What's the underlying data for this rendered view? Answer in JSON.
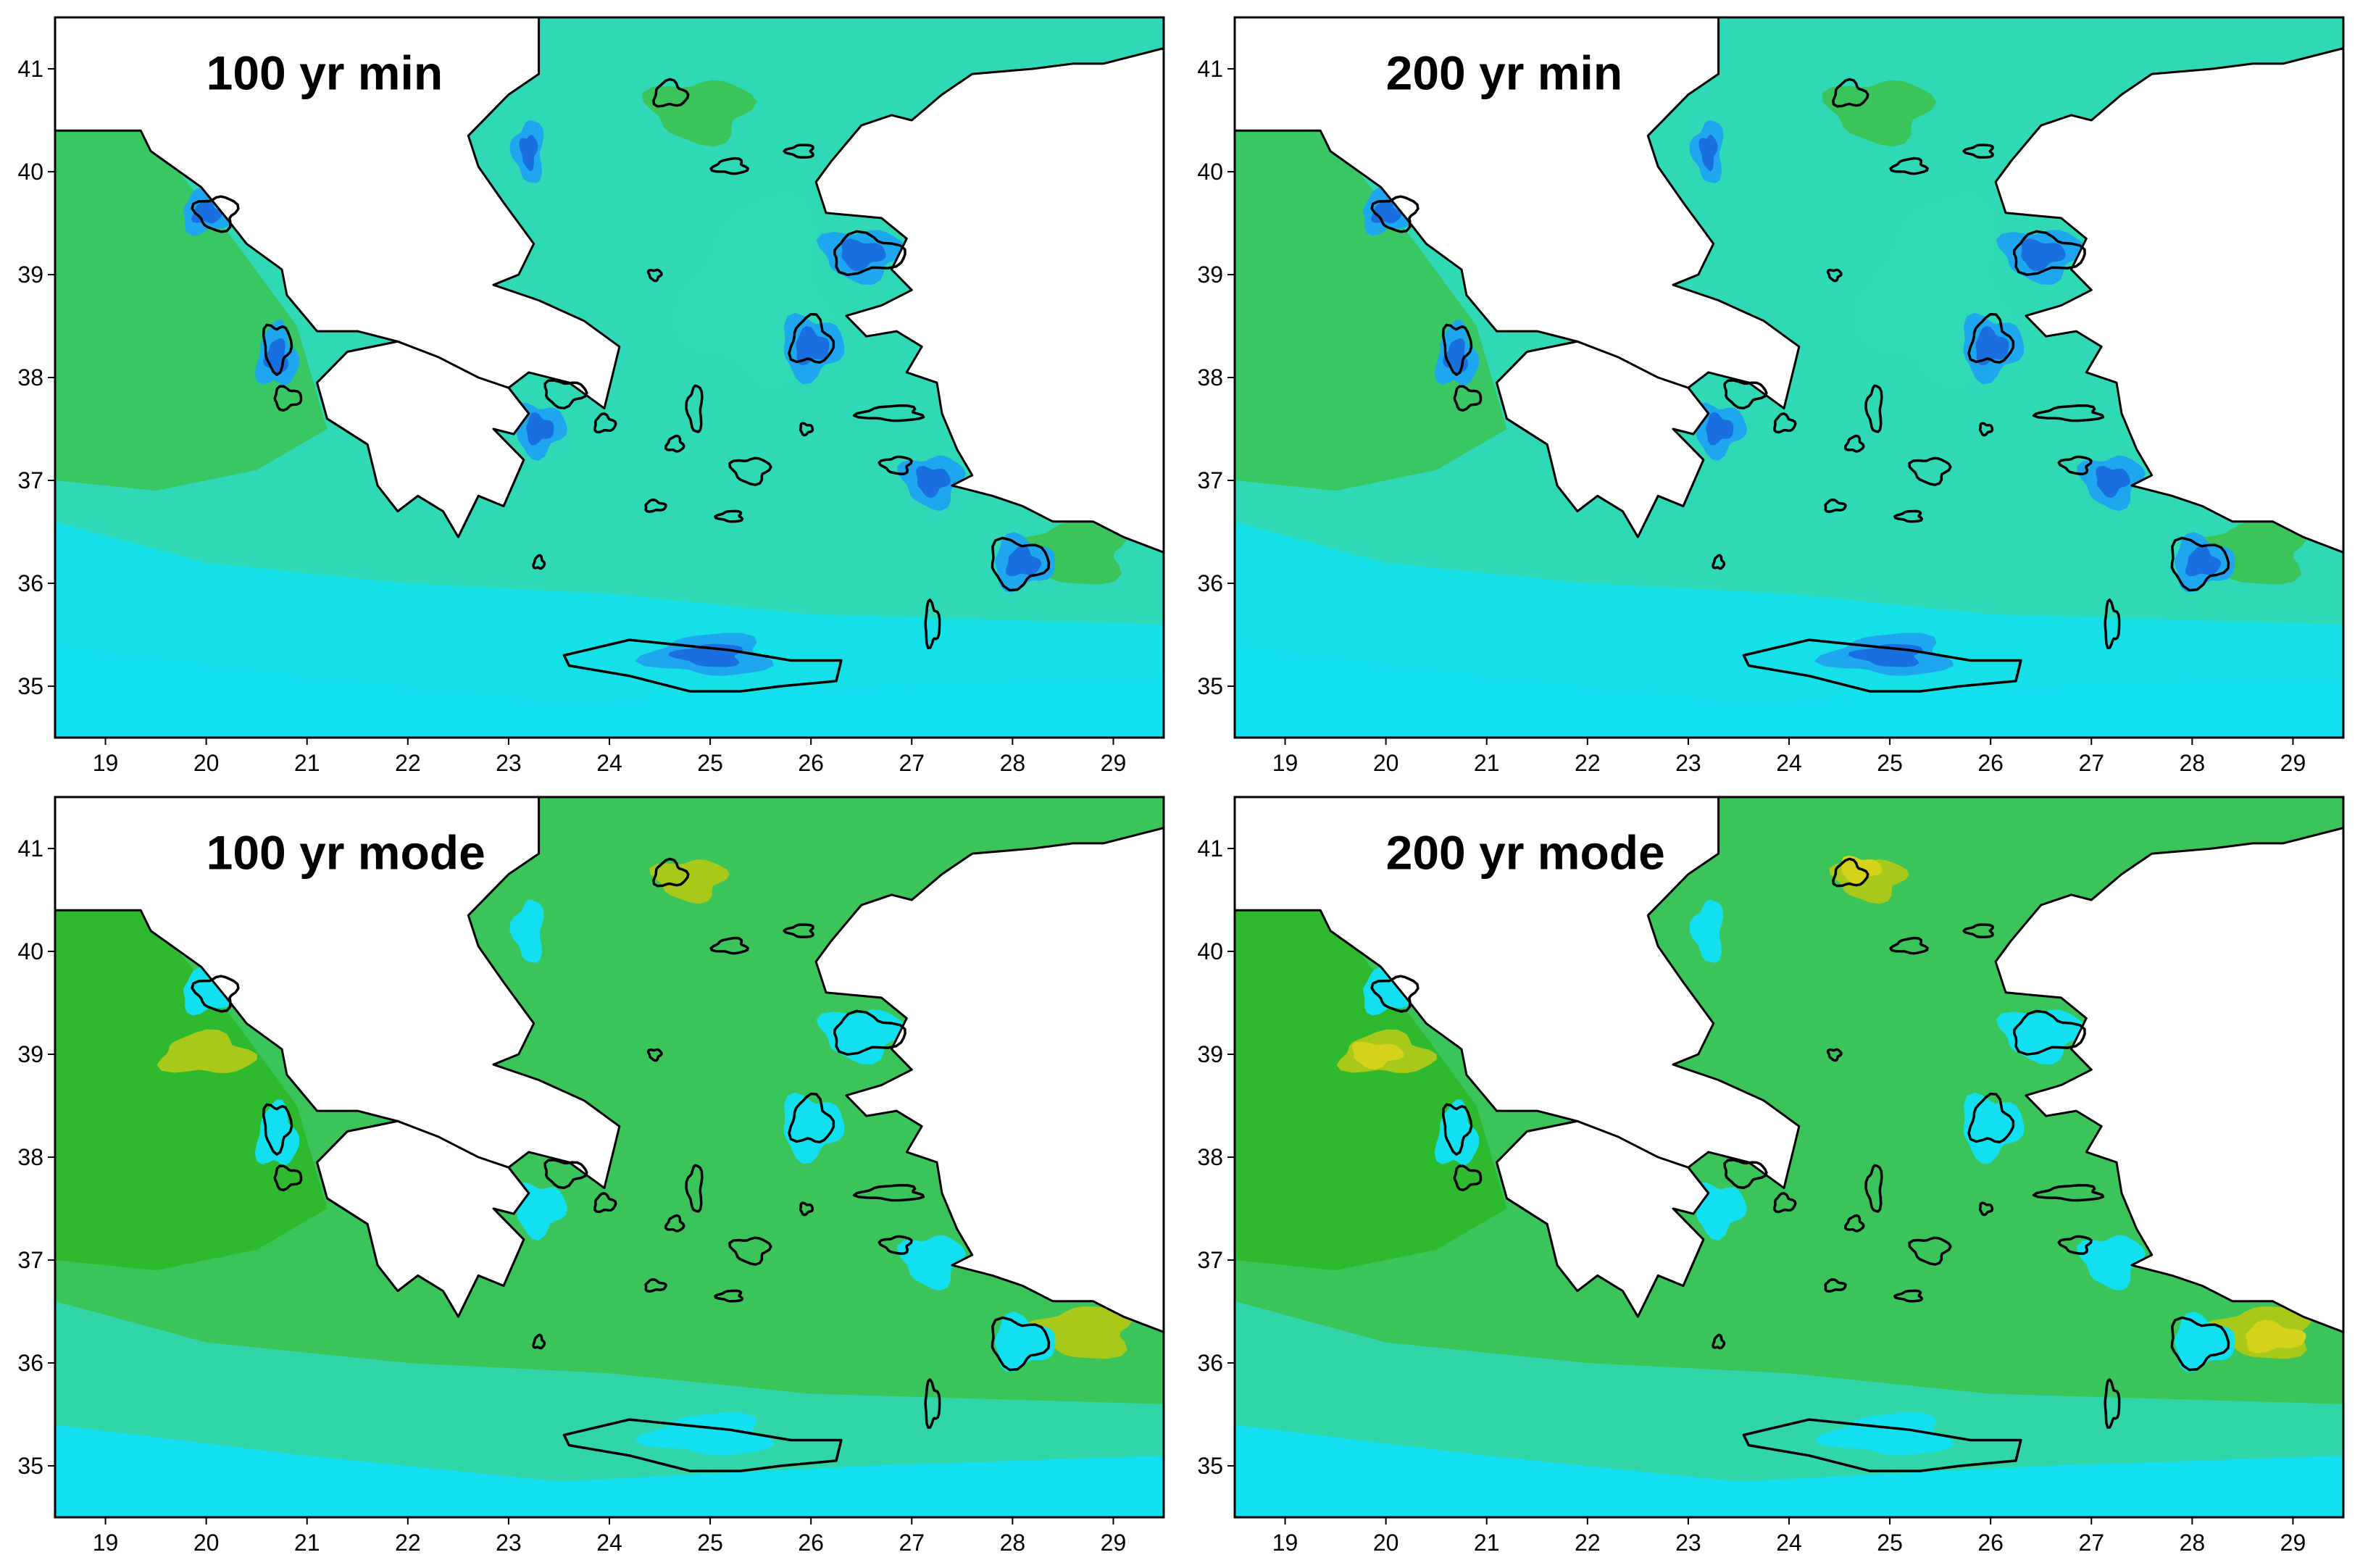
{
  "panels": [
    {
      "title": "100 yr min",
      "level": 0.0
    },
    {
      "title": "200 yr min",
      "level": 0.15
    },
    {
      "title": "100 yr mode",
      "level": 0.55
    },
    {
      "title": "200 yr mode",
      "level": 0.8
    }
  ],
  "axes": {
    "lon_ticks": [
      "19",
      "20",
      "21",
      "22",
      "23",
      "24",
      "25",
      "26",
      "27",
      "28",
      "29"
    ],
    "lat_ticks": [
      "41",
      "40",
      "39",
      "38",
      "37",
      "36",
      "35"
    ],
    "lon_range": [
      18.5,
      29.5
    ],
    "lat_range": [
      34.5,
      41.5
    ]
  },
  "colors": {
    "deep_blue": "#1a6fe0",
    "blue": "#1ea7ef",
    "cyan": "#12e0f0",
    "teal": "#2fd9b5",
    "green": "#3ac45a",
    "dark_green": "#2db82a",
    "yellow_green": "#a8c81a",
    "yellow": "#d4d21a",
    "coast": "#000000",
    "land": "#ffffff"
  }
}
